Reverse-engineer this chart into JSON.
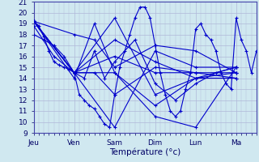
{
  "title": "",
  "xlabel": "Température (°c)",
  "ylabel": "",
  "xlim": [
    0,
    132
  ],
  "ylim": [
    9,
    21
  ],
  "yticks": [
    9,
    10,
    11,
    12,
    13,
    14,
    15,
    16,
    17,
    18,
    19,
    20,
    21
  ],
  "xtick_positions": [
    0,
    24,
    48,
    72,
    96,
    120,
    132
  ],
  "xtick_labels": [
    "Jeu",
    "Ven",
    "Sam",
    "Dim",
    "Lun",
    "Ma",
    ""
  ],
  "bg_color": "#d0e8f0",
  "grid_color": "#b0b8d8",
  "line_color": "#0000cc",
  "series": [
    [
      0,
      19.2,
      3,
      18.8,
      6,
      17.8,
      9,
      16.5,
      12,
      15.5,
      15,
      15.2,
      18,
      15.0,
      21,
      14.8,
      24,
      14.5,
      27,
      12.5,
      30,
      12.0,
      33,
      11.5,
      36,
      11.2,
      39,
      10.5,
      42,
      9.8,
      45,
      9.5,
      48,
      12.5,
      51,
      15.0,
      54,
      16.5,
      57,
      18.0,
      60,
      19.5,
      63,
      20.5,
      66,
      20.5,
      69,
      19.5,
      72,
      17.0,
      75,
      14.5,
      78,
      12.5,
      81,
      11.0,
      84,
      10.5,
      87,
      11.0,
      90,
      13.0,
      93,
      14.5,
      96,
      18.5,
      99,
      19.0,
      102,
      18.0,
      105,
      17.5,
      108,
      16.5,
      111,
      14.5,
      114,
      13.5,
      117,
      13.0,
      120,
      19.5,
      123,
      17.5,
      126,
      16.5,
      129,
      14.5,
      132,
      16.5
    ],
    [
      0,
      19.2,
      24,
      14.5,
      48,
      9.5,
      72,
      16.5,
      96,
      15.0,
      120,
      15.0
    ],
    [
      0,
      19.2,
      24,
      14.5,
      48,
      16.0,
      72,
      14.5,
      96,
      14.5,
      120,
      14.5
    ],
    [
      0,
      19.2,
      24,
      14.5,
      48,
      17.5,
      72,
      15.5,
      96,
      14.0,
      120,
      14.0
    ],
    [
      0,
      19.2,
      24,
      14.5,
      48,
      19.5,
      72,
      12.5,
      96,
      14.0,
      120,
      15.0
    ],
    [
      0,
      19.2,
      24,
      14.5,
      48,
      14.5,
      72,
      11.5,
      96,
      14.0,
      120,
      14.5
    ],
    [
      0,
      19.2,
      24,
      14.0,
      36,
      19.0,
      48,
      14.5,
      72,
      10.5,
      96,
      9.5,
      120,
      15.0
    ],
    [
      0,
      19.2,
      24,
      18.0,
      36,
      17.5,
      48,
      15.0,
      72,
      17.0,
      96,
      16.5,
      120,
      14.5
    ],
    [
      0,
      18.8,
      12,
      16.0,
      24,
      14.5,
      36,
      14.5,
      48,
      12.5,
      72,
      15.0,
      96,
      14.5,
      120,
      14.0
    ],
    [
      0,
      18.0,
      6,
      17.5,
      12,
      17.0,
      18,
      16.0,
      24,
      14.5,
      30,
      14.0,
      36,
      16.5,
      42,
      14.0,
      48,
      15.5,
      60,
      17.5,
      72,
      13.5,
      84,
      12.0,
      96,
      13.5,
      108,
      14.5,
      120,
      15.0
    ]
  ]
}
